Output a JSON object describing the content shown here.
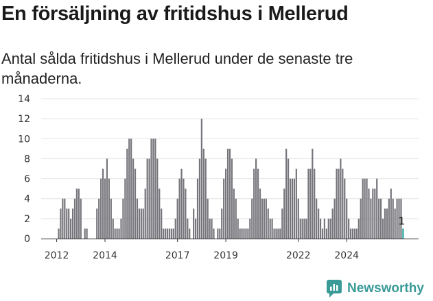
{
  "header": {
    "title": "En försäljning av fritidshus i Mellerud",
    "subtitle": "Antal sålda fritidshus i Mellerud under de senaste tre månaderna."
  },
  "brand": {
    "name": "Newsworthy",
    "color": "#3a9a98"
  },
  "chart_data": {
    "type": "bar",
    "title": "",
    "xlabel": "",
    "ylabel": "",
    "ylim": [
      0,
      14
    ],
    "yticks": [
      "0",
      "2",
      "4",
      "6",
      "8",
      "10",
      "12",
      "14"
    ],
    "xticks": [
      "2012",
      "2014",
      "2017",
      "2019",
      "2022",
      "2024"
    ],
    "grid": true,
    "bar_color": "#76757b",
    "highlight_color": "#26a39b",
    "highlight_label": "1",
    "values": [
      1,
      3,
      4,
      4,
      3,
      3,
      2,
      3,
      4,
      5,
      5,
      4,
      0,
      1,
      1,
      0,
      0,
      0,
      0,
      3,
      4,
      6,
      7,
      6,
      8,
      6,
      4,
      2,
      1,
      1,
      1,
      2,
      4,
      6,
      9,
      10,
      10,
      8,
      7,
      4,
      3,
      3,
      3,
      5,
      8,
      8,
      10,
      10,
      10,
      8,
      5,
      3,
      1,
      1,
      1,
      1,
      1,
      1,
      2,
      4,
      6,
      7,
      6,
      5,
      2,
      1,
      0,
      3,
      2,
      6,
      8,
      12,
      9,
      8,
      4,
      2,
      2,
      1,
      0,
      1,
      1,
      3,
      6,
      7,
      9,
      9,
      8,
      5,
      4,
      2,
      1,
      1,
      1,
      1,
      1,
      2,
      4,
      7,
      8,
      7,
      5,
      4,
      4,
      4,
      3,
      2,
      2,
      1,
      1,
      1,
      1,
      3,
      5,
      9,
      8,
      6,
      6,
      6,
      7,
      4,
      2,
      2,
      2,
      2,
      7,
      7,
      9,
      7,
      4,
      3,
      2,
      1,
      2,
      1,
      2,
      2,
      3,
      4,
      7,
      7,
      8,
      7,
      6,
      4,
      2,
      1,
      1,
      1,
      1,
      2,
      4,
      6,
      6,
      6,
      5,
      4,
      5,
      5,
      6,
      4,
      4,
      2,
      3,
      3,
      4,
      5,
      4,
      3,
      4,
      4,
      4,
      1
    ]
  }
}
